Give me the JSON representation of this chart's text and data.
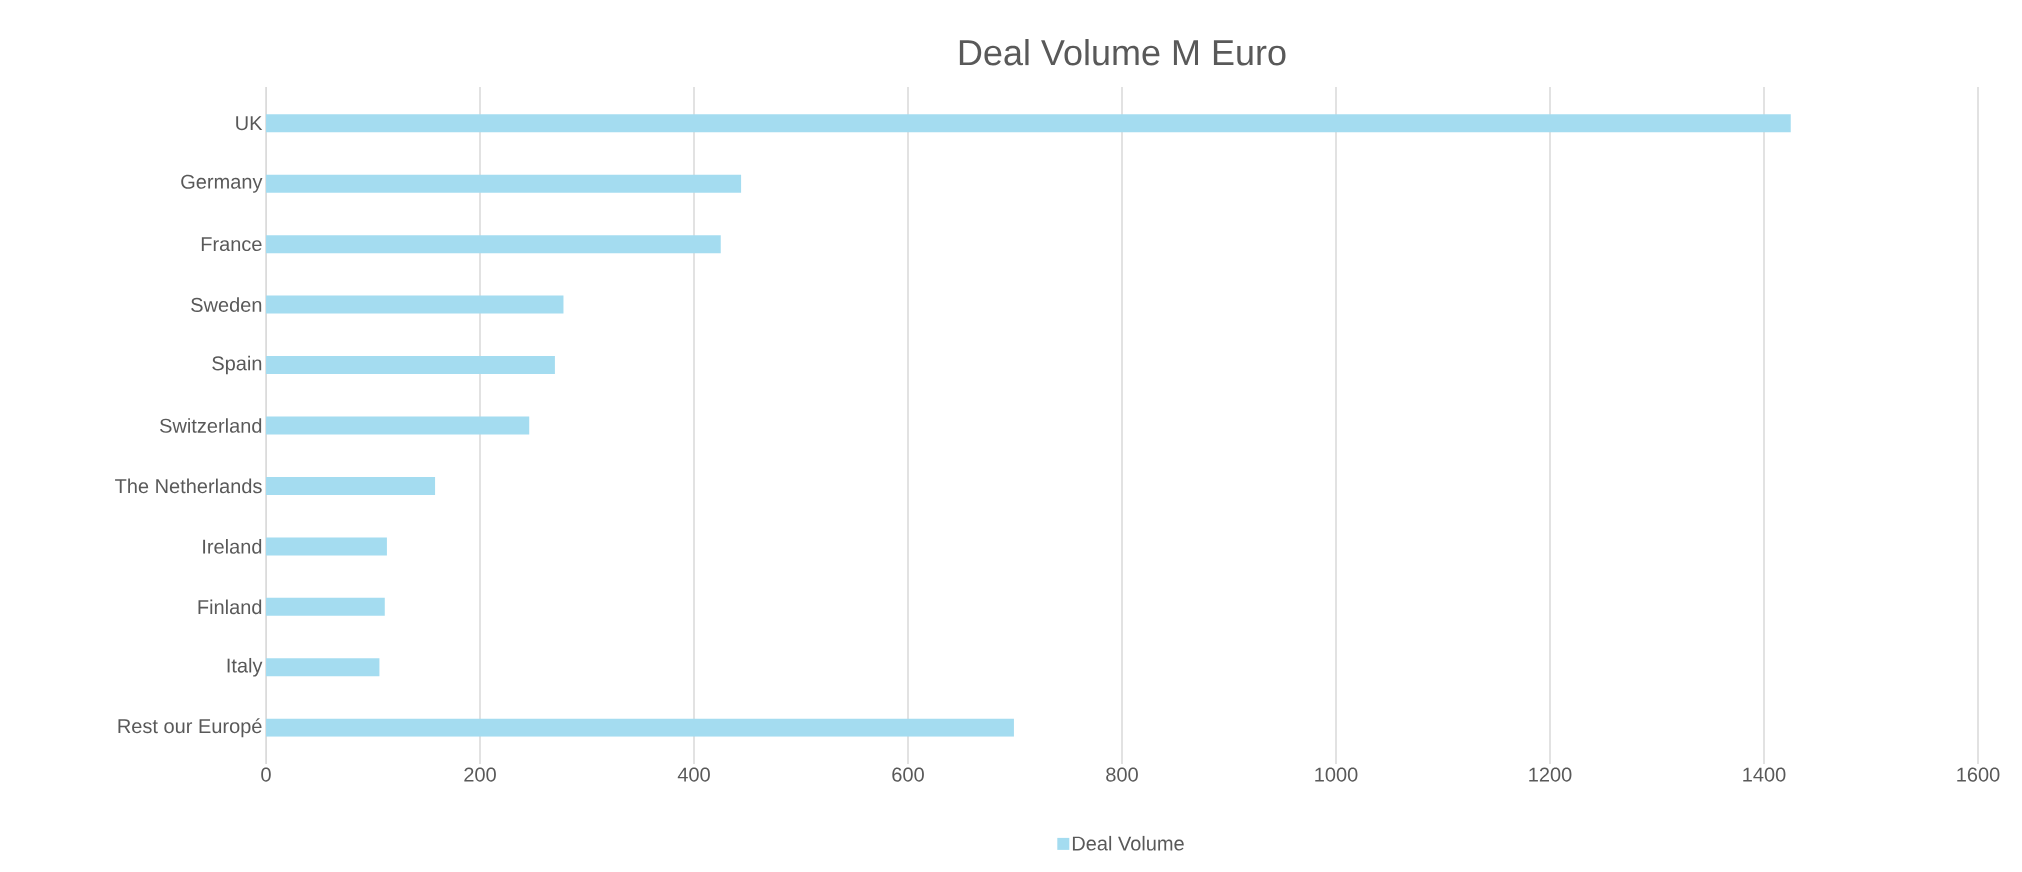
{
  "chart_data": {
    "type": "bar",
    "orientation": "horizontal",
    "title": "Deal Volume M Euro",
    "categories": [
      "UK",
      "Germany",
      "France",
      "Sweden",
      "Spain",
      "Switzerland",
      "The Netherlands",
      "Ireland",
      "Finland",
      "Italy",
      "Rest our Europé"
    ],
    "series": [
      {
        "name": "Deal Volume",
        "color": "#a4dcf0",
        "values": [
          1425,
          444,
          425,
          278,
          270,
          246,
          158,
          113,
          111,
          106,
          699
        ]
      }
    ],
    "xlim": [
      0,
      1600
    ],
    "xticks": [
      0,
      200,
      400,
      600,
      800,
      1000,
      1200,
      1400,
      1600
    ],
    "grid": "x",
    "legend": "bottom"
  }
}
